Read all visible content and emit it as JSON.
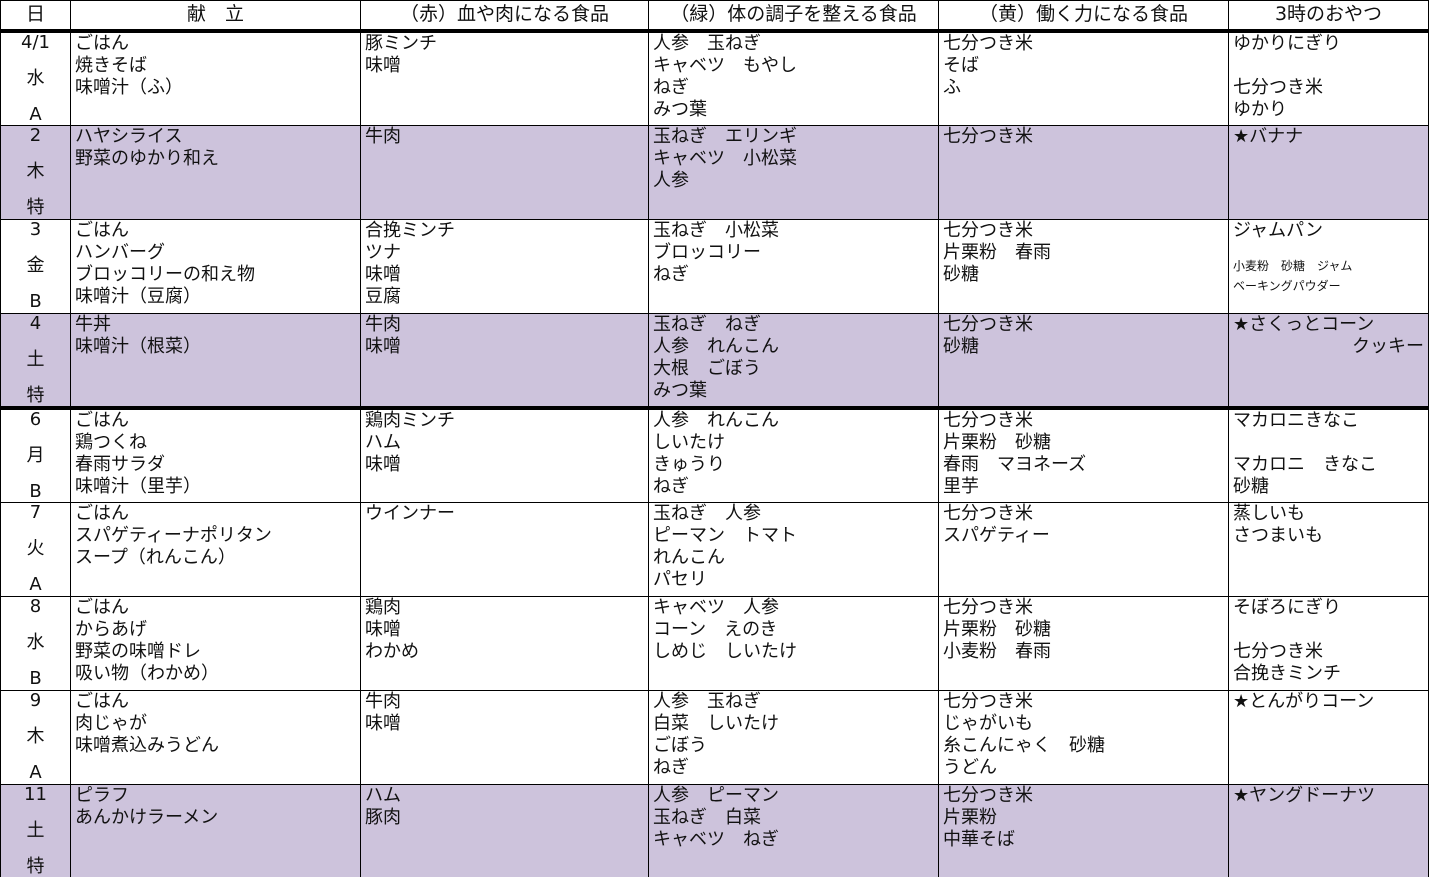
{
  "table": {
    "headers": [
      "日",
      "献　立",
      "（赤）血や肉になる食品",
      "（緑）体の調子を整える食品",
      "（黄）働く力になる食品",
      "3時のおやつ"
    ],
    "rows": [
      {
        "date": "4/1",
        "weekday": "水",
        "kind": "A",
        "menu": [
          "ごはん",
          "焼きそば",
          "味噌汁（ふ）"
        ],
        "red": [
          "豚ミンチ",
          "味噌"
        ],
        "green": [
          "人参　玉ねぎ",
          "キャベツ　もやし",
          "ねぎ",
          "みつ葉"
        ],
        "yellow": [
          "七分つき米",
          "そば",
          "ふ"
        ],
        "snack": [
          "ゆかりにぎり",
          "七分つき米",
          "ゆかり"
        ]
      },
      {
        "date": "2",
        "weekday": "木",
        "kind": "特",
        "menu": [
          "ハヤシライス",
          "野菜のゆかり和え"
        ],
        "red": [
          "牛肉"
        ],
        "green": [
          "玉ねぎ　エリンギ",
          "キャベツ　小松菜",
          "人参"
        ],
        "yellow": [
          "七分つき米"
        ],
        "snack": [
          "★バナナ"
        ]
      },
      {
        "date": "3",
        "weekday": "金",
        "kind": "B",
        "menu": [
          "ごはん",
          "ハンバーグ",
          "ブロッコリーの和え物",
          "味噌汁（豆腐）"
        ],
        "red": [
          "合挽ミンチ",
          "ツナ",
          "味噌",
          "豆腐"
        ],
        "green": [
          "玉ねぎ　小松菜",
          "ブロッコリー",
          "ねぎ"
        ],
        "yellow": [
          "七分つき米",
          "片栗粉　春雨",
          "砂糖"
        ],
        "snack": [
          "ジャムパン",
          "小麦粉　砂糖　ジャム",
          "ベーキングパウダー"
        ]
      },
      {
        "date": "4",
        "weekday": "土",
        "kind": "特",
        "menu": [
          "牛丼",
          "味噌汁（根菜）"
        ],
        "red": [
          "牛肉",
          "味噌"
        ],
        "green": [
          "玉ねぎ　ねぎ",
          "人参　れんこん",
          "大根　ごぼう",
          "みつ葉"
        ],
        "yellow": [
          "七分つき米",
          "砂糖"
        ],
        "snack": [
          "★さくっとコーン",
          "クッキー"
        ]
      },
      {
        "date": "6",
        "weekday": "月",
        "kind": "B",
        "menu": [
          "ごはん",
          "鶏つくね",
          "春雨サラダ",
          "味噌汁（里芋）"
        ],
        "red": [
          "鶏肉ミンチ",
          "ハム",
          "味噌"
        ],
        "green": [
          "人参　れんこん",
          "しいたけ",
          "きゅうり",
          "ねぎ"
        ],
        "yellow": [
          "七分つき米",
          "片栗粉　砂糖",
          "春雨　マヨネーズ",
          "里芋"
        ],
        "snack": [
          "マカロニきなこ",
          "マカロニ　きなこ",
          "砂糖"
        ]
      },
      {
        "date": "7",
        "weekday": "火",
        "kind": "A",
        "menu": [
          "ごはん",
          "スパゲティーナポリタン",
          "スープ（れんこん）"
        ],
        "red": [
          "ウインナー"
        ],
        "green": [
          "玉ねぎ　人参",
          "ピーマン　トマト",
          "れんこん",
          "パセリ"
        ],
        "yellow": [
          "七分つき米",
          "スパゲティー"
        ],
        "snack": [
          "蒸しいも",
          "さつまいも"
        ]
      },
      {
        "date": "8",
        "weekday": "水",
        "kind": "B",
        "menu": [
          "ごはん",
          "からあげ",
          "野菜の味噌ドレ",
          "吸い物（わかめ）"
        ],
        "red": [
          "鶏肉",
          "味噌",
          "わかめ"
        ],
        "green": [
          "キャベツ　人参",
          "コーン　えのき",
          "しめじ　しいたけ"
        ],
        "yellow": [
          "七分つき米",
          "片栗粉　砂糖",
          "小麦粉　春雨"
        ],
        "snack": [
          "そぼろにぎり",
          "七分つき米",
          "合挽きミンチ"
        ]
      },
      {
        "date": "9",
        "weekday": "木",
        "kind": "A",
        "menu": [
          "ごはん",
          "肉じゃが",
          "味噌煮込みうどん"
        ],
        "red": [
          "牛肉",
          "味噌"
        ],
        "green": [
          "人参　玉ねぎ",
          "白菜　しいたけ",
          "ごぼう",
          "ねぎ"
        ],
        "yellow": [
          "七分つき米",
          "じゃがいも",
          "糸こんにゃく　砂糖",
          "うどん"
        ],
        "snack": [
          "★とんがりコーン"
        ]
      },
      {
        "date": "11",
        "weekday": "土",
        "kind": "特",
        "menu": [
          "ピラフ",
          "あんかけラーメン"
        ],
        "red": [
          "ハム",
          "豚肉"
        ],
        "green": [
          "人参　ピーマン",
          "玉ねぎ　白菜",
          "キャベツ　ねぎ"
        ],
        "yellow": [
          "七分つき米",
          "片栗粉",
          "中華そば"
        ],
        "snack": [
          "★ヤングドーナツ"
        ]
      }
    ]
  }
}
